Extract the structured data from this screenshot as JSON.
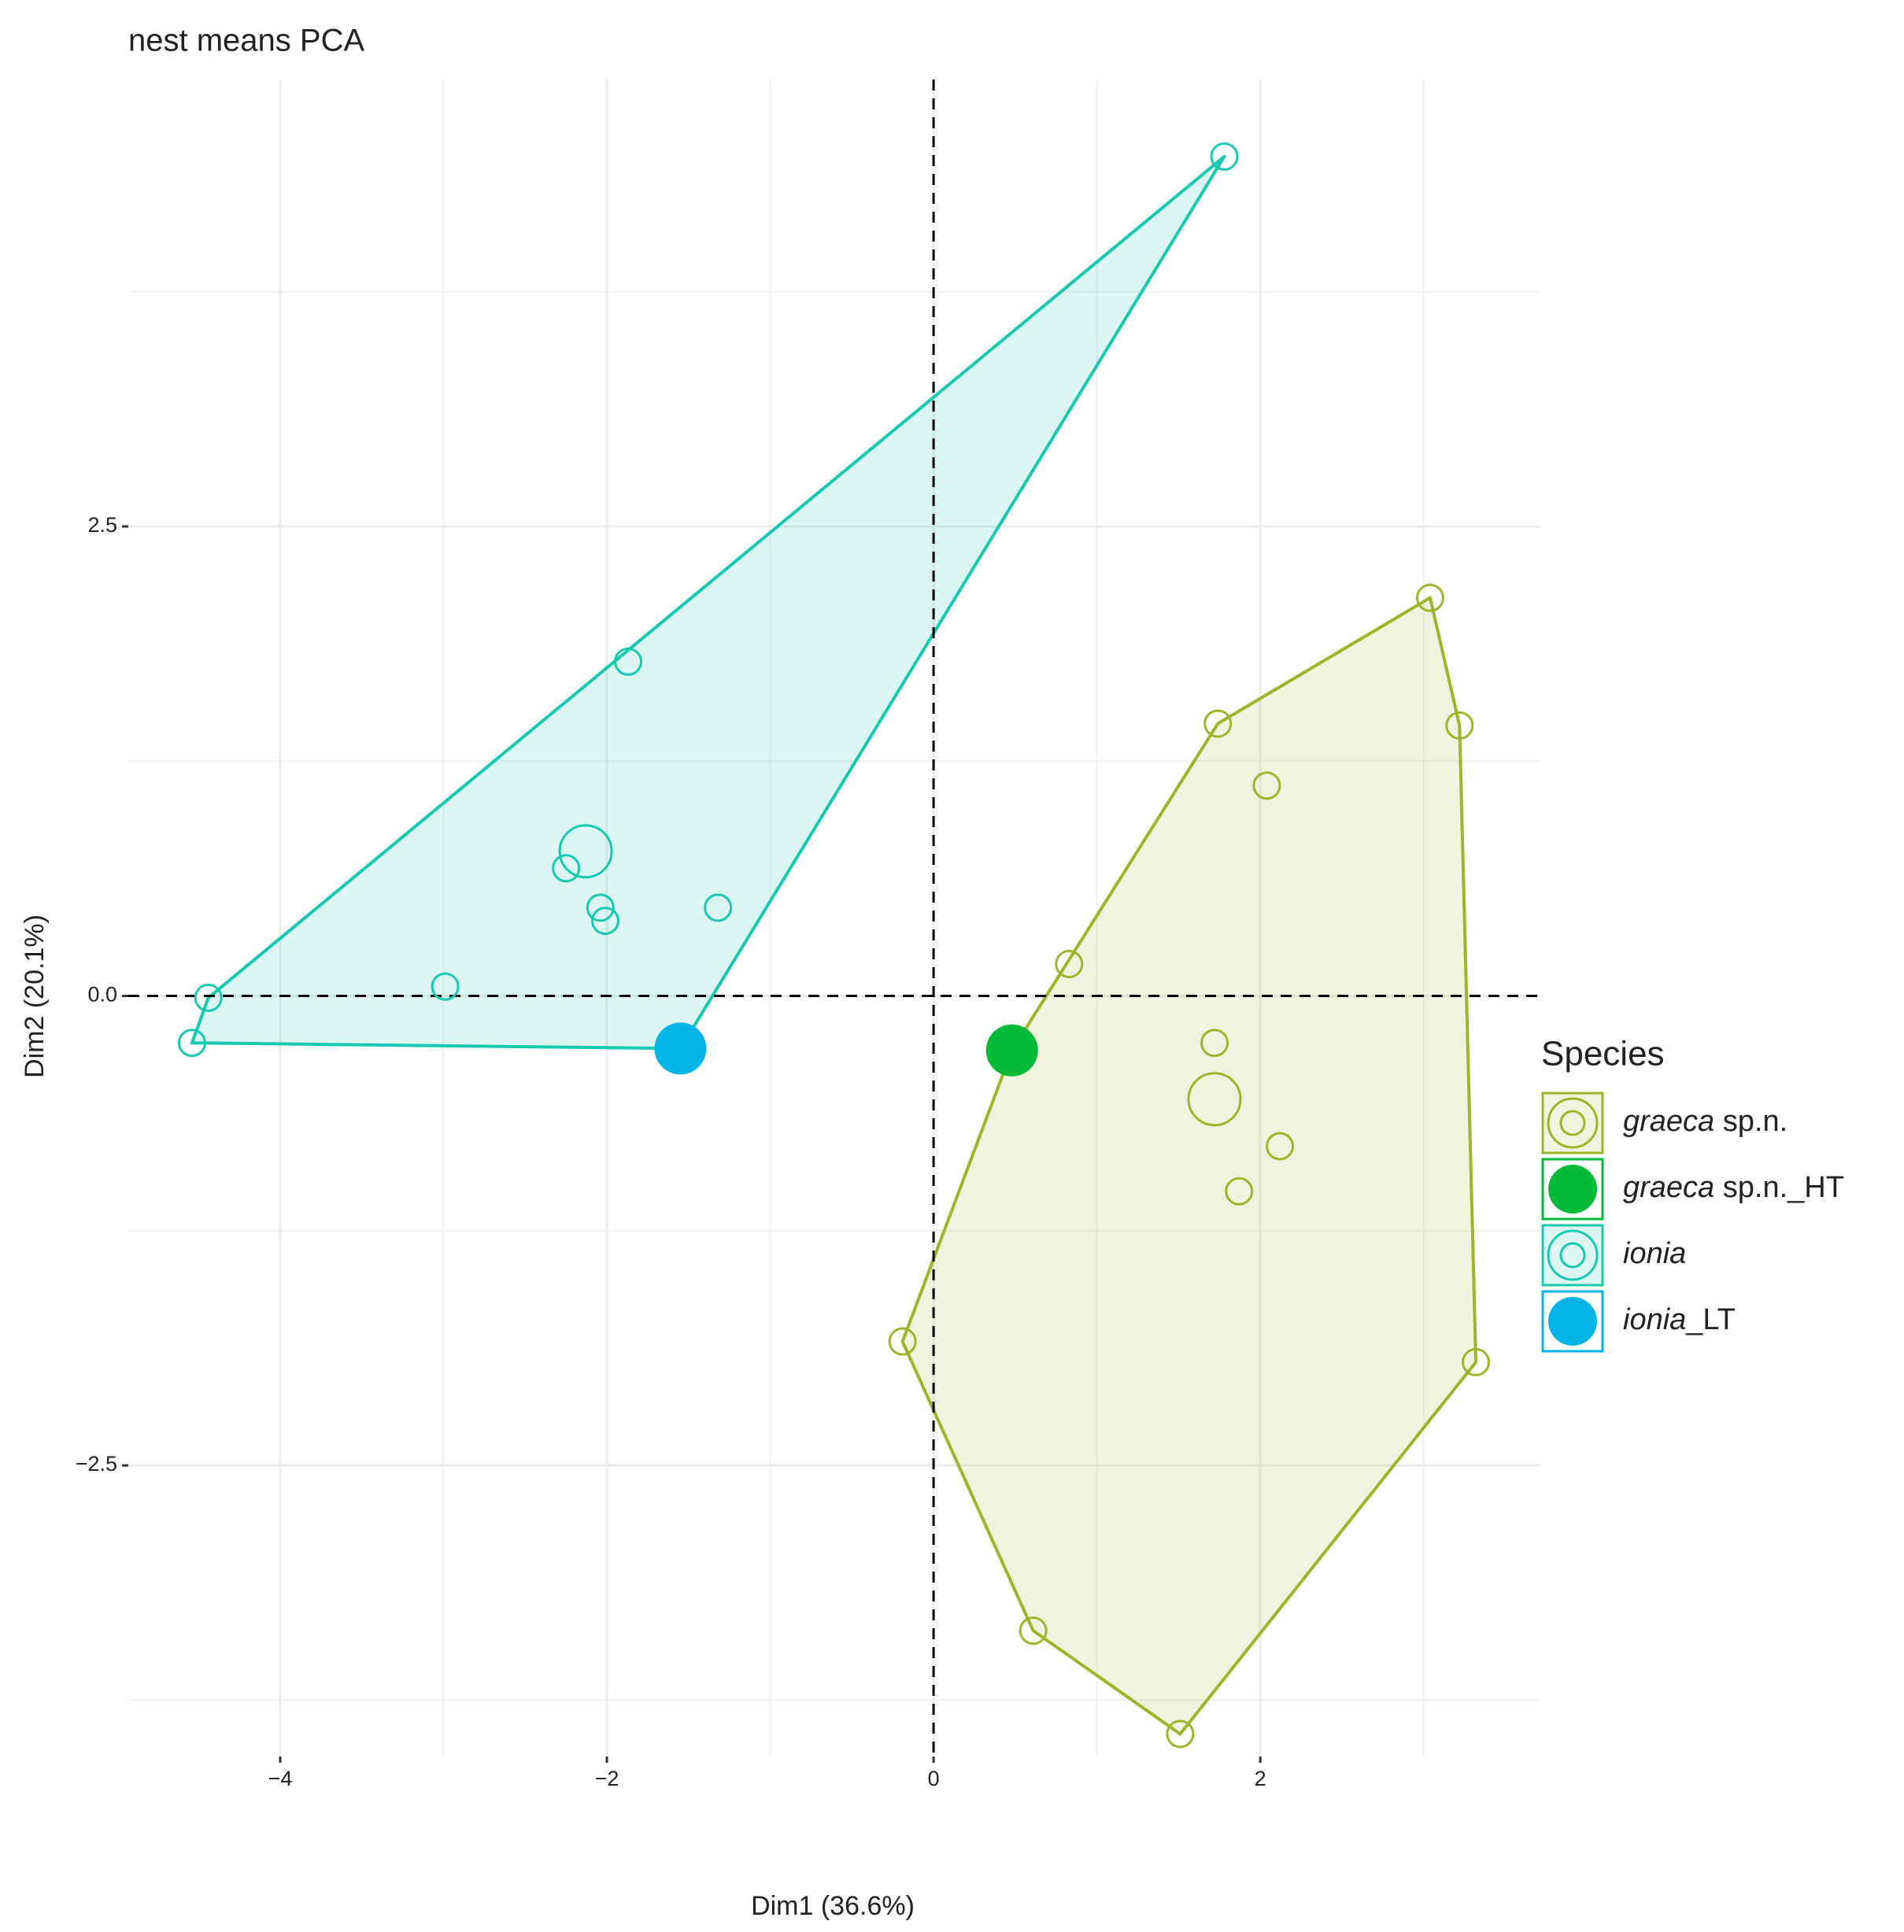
{
  "chart_data": {
    "type": "scatter",
    "title": "nest means PCA",
    "x_label": "Dim1 (36.6%)",
    "y_label": "Dim2 (20.1%)",
    "legend_title": "Species",
    "legend_position": "right",
    "xlim": [
      -4.93,
      3.71
    ],
    "ylim": [
      -4.05,
      4.88
    ],
    "xticks": [
      {
        "value": -4,
        "label": "−4"
      },
      {
        "value": -2,
        "label": "−2"
      },
      0,
      2
    ],
    "yticks": [
      {
        "value": -2.5,
        "label": "−2.5"
      },
      {
        "value": 0,
        "label": "0.0"
      },
      2.5
    ],
    "grid": true,
    "hlines": [
      0
    ],
    "vlines": [
      0
    ],
    "series": [
      {
        "name": "graeca sp.n.",
        "color": "#9db52a",
        "filled": false,
        "x": [
          3.04,
          1.74,
          3.22,
          2.04,
          0.83,
          1.72,
          1.72,
          2.12,
          1.87,
          -0.19,
          3.32,
          0.61,
          1.51
        ],
        "values": [
          2.12,
          1.45,
          1.44,
          1.12,
          0.17,
          -0.25,
          -0.55,
          -0.8,
          -1.04,
          -1.84,
          -1.95,
          -3.38,
          -3.93
        ],
        "sizes": [
          1,
          1,
          1,
          1,
          1,
          1,
          2,
          1,
          1,
          1,
          1,
          1,
          1
        ]
      },
      {
        "name": "graeca sp.n._HT",
        "color": "#00ba38",
        "filled": true,
        "x": [
          0.48
        ],
        "values": [
          -0.29
        ],
        "sizes": [
          2
        ]
      },
      {
        "name": "ionia",
        "color": "#17c9ae",
        "filled": false,
        "x": [
          1.78,
          -1.87,
          -2.13,
          -2.25,
          -2.04,
          -2.01,
          -1.32,
          -2.99,
          -4.44,
          -4.54
        ],
        "values": [
          4.47,
          1.78,
          0.77,
          0.68,
          0.47,
          0.4,
          0.47,
          0.05,
          -0.01,
          -0.25
        ],
        "sizes": [
          1,
          1,
          2,
          1,
          1,
          1,
          1,
          1,
          1,
          1
        ]
      },
      {
        "name": "ionia_LT",
        "color": "#00b4e8",
        "filled": true,
        "x": [
          -1.55
        ],
        "values": [
          -0.28
        ],
        "sizes": [
          2
        ]
      }
    ]
  }
}
